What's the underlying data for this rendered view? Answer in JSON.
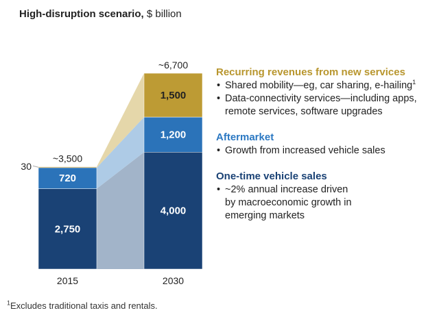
{
  "title": {
    "bold": "High-disruption scenario,",
    "rest": " $ billion"
  },
  "chart_data": {
    "type": "stacked-bar",
    "categories": [
      "2015",
      "2030"
    ],
    "series": [
      {
        "name": "One-time vehicle sales",
        "values": [
          2750,
          4000
        ],
        "color": "#1a4275",
        "bridge_color": "#a2b4c9",
        "label_color": "#ffffff"
      },
      {
        "name": "Aftermarket",
        "values": [
          720,
          1200
        ],
        "color": "#2b73b9",
        "bridge_color": "#aecbe6",
        "label_color": "#ffffff"
      },
      {
        "name": "Recurring revenues from new services",
        "values": [
          30,
          1500
        ],
        "color": "#bd9b34",
        "bridge_color": "#e5d7aa",
        "label_color": "#222222"
      }
    ],
    "value_labels": [
      [
        "2,750",
        "720",
        "30"
      ],
      [
        "4,000",
        "1,200",
        "1,500"
      ]
    ],
    "totals": [
      "~3,500",
      "~6,700"
    ],
    "ylim": [
      0,
      6700
    ]
  },
  "legend": [
    {
      "heading": "Recurring revenues from new services",
      "color": "#b8962e",
      "items": [
        {
          "text": "Shared mobility—eg, car sharing, e-hailing",
          "sup": "1"
        },
        {
          "text": "Data-connectivity services—including apps, remote services, software upgrades",
          "sup": ""
        }
      ]
    },
    {
      "heading": "Aftermarket",
      "color": "#2b78c2",
      "items": [
        {
          "text": "Growth from increased vehicle sales",
          "sup": ""
        }
      ]
    },
    {
      "heading": "One-time vehicle sales",
      "color": "#1a4275",
      "items": [
        {
          "text": "~2% annual increase driven by macroeconomic growth in emerging markets",
          "sup": ""
        }
      ]
    }
  ],
  "footnote": {
    "sup": "1",
    "text": "Excludes traditional taxis and rentals."
  }
}
